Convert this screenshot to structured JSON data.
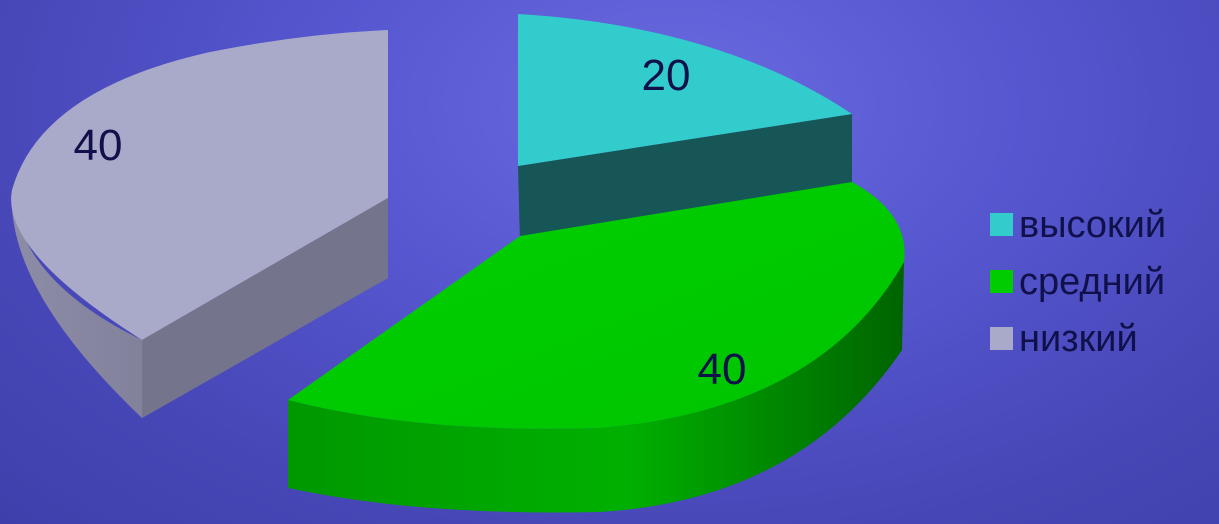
{
  "chart_data": {
    "type": "pie",
    "title": "",
    "categories": [
      "высокий",
      "средний",
      "низкий"
    ],
    "values": [
      20,
      40,
      40
    ],
    "data_labels": [
      "20",
      "40",
      "40"
    ],
    "colors": {
      "высокий": "#33cccc",
      "средний": "#00cc00",
      "низкий": "#a9a9c9"
    },
    "legend_position": "right",
    "style": "3d-exploded"
  },
  "legend": {
    "items": [
      {
        "label": "высокий",
        "color": "#33cccc"
      },
      {
        "label": "средний",
        "color": "#00cc00"
      },
      {
        "label": "низкий",
        "color": "#a9a9c9"
      }
    ]
  },
  "background": {
    "color": "#5555cc"
  }
}
